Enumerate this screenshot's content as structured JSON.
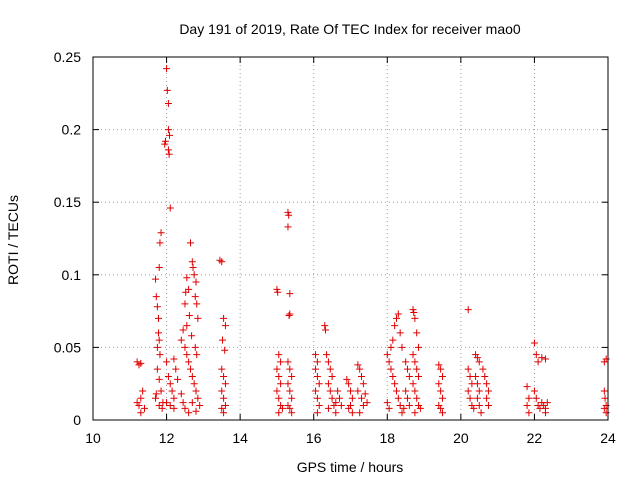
{
  "chart_data": {
    "type": "scatter",
    "title": "Day 191 of 2019, Rate Of TEC Index for receiver mao0",
    "xlabel": "GPS time / hours",
    "ylabel": "ROTI / TECUs",
    "xlim": [
      10,
      24
    ],
    "ylim": [
      0,
      0.25
    ],
    "grid": true,
    "marker": "+",
    "color": "#e00000",
    "x_ticks": [
      10,
      12,
      14,
      16,
      18,
      20,
      22,
      24
    ],
    "x_tick_labels": [
      "10",
      "12",
      "14",
      "16",
      "18",
      "20",
      "22",
      "24"
    ],
    "y_ticks": [
      0,
      0.05,
      0.1,
      0.15,
      0.2,
      0.25
    ],
    "y_tick_labels": [
      "0",
      "0.05",
      "0.1",
      "0.15",
      "0.2",
      "0.25"
    ],
    "series": [
      {
        "name": "ROTI",
        "points": [
          [
            11.2,
            0.04
          ],
          [
            11.25,
            0.038
          ],
          [
            11.3,
            0.039
          ],
          [
            11.2,
            0.012
          ],
          [
            11.25,
            0.01
          ],
          [
            11.3,
            0.015
          ],
          [
            11.35,
            0.02
          ],
          [
            11.4,
            0.008
          ],
          [
            11.3,
            0.005
          ],
          [
            11.7,
            0.097
          ],
          [
            11.72,
            0.085
          ],
          [
            11.75,
            0.078
          ],
          [
            11.78,
            0.06
          ],
          [
            11.8,
            0.055
          ],
          [
            11.82,
            0.045
          ],
          [
            11.75,
            0.035
          ],
          [
            11.8,
            0.028
          ],
          [
            11.85,
            0.02
          ],
          [
            11.7,
            0.015
          ],
          [
            11.9,
            0.012
          ],
          [
            11.8,
            0.01
          ],
          [
            11.88,
            0.008
          ],
          [
            11.72,
            0.018
          ],
          [
            11.8,
            0.105
          ],
          [
            11.82,
            0.122
          ],
          [
            11.85,
            0.129
          ],
          [
            11.78,
            0.07
          ],
          [
            11.75,
            0.05
          ],
          [
            11.95,
            0.19
          ],
          [
            11.97,
            0.192
          ],
          [
            12.0,
            0.242
          ],
          [
            12.02,
            0.227
          ],
          [
            12.05,
            0.218
          ],
          [
            12.05,
            0.2
          ],
          [
            12.08,
            0.196
          ],
          [
            12.05,
            0.186
          ],
          [
            12.07,
            0.183
          ],
          [
            12.1,
            0.146
          ],
          [
            12.0,
            0.04
          ],
          [
            12.05,
            0.03
          ],
          [
            12.1,
            0.025
          ],
          [
            12.15,
            0.02
          ],
          [
            12.2,
            0.015
          ],
          [
            12.1,
            0.01
          ],
          [
            12.0,
            0.012
          ],
          [
            12.2,
            0.008
          ],
          [
            12.25,
            0.035
          ],
          [
            12.3,
            0.028
          ],
          [
            12.2,
            0.042
          ],
          [
            12.4,
            0.055
          ],
          [
            12.45,
            0.062
          ],
          [
            12.5,
            0.08
          ],
          [
            12.52,
            0.088
          ],
          [
            12.55,
            0.098
          ],
          [
            12.6,
            0.09
          ],
          [
            12.65,
            0.122
          ],
          [
            12.7,
            0.109
          ],
          [
            12.72,
            0.105
          ],
          [
            12.75,
            0.1
          ],
          [
            12.8,
            0.095
          ],
          [
            12.78,
            0.085
          ],
          [
            12.82,
            0.08
          ],
          [
            12.85,
            0.07
          ],
          [
            12.5,
            0.05
          ],
          [
            12.55,
            0.045
          ],
          [
            12.6,
            0.04
          ],
          [
            12.65,
            0.035
          ],
          [
            12.7,
            0.03
          ],
          [
            12.75,
            0.025
          ],
          [
            12.8,
            0.02
          ],
          [
            12.85,
            0.015
          ],
          [
            12.9,
            0.01
          ],
          [
            12.4,
            0.018
          ],
          [
            12.45,
            0.012
          ],
          [
            12.5,
            0.008
          ],
          [
            12.6,
            0.005
          ],
          [
            12.7,
            0.012
          ],
          [
            12.8,
            0.006
          ],
          [
            12.55,
            0.065
          ],
          [
            12.62,
            0.072
          ],
          [
            12.68,
            0.058
          ],
          [
            12.78,
            0.05
          ],
          [
            12.82,
            0.045
          ],
          [
            13.45,
            0.11
          ],
          [
            13.5,
            0.109
          ],
          [
            13.55,
            0.07
          ],
          [
            13.6,
            0.065
          ],
          [
            13.52,
            0.055
          ],
          [
            13.58,
            0.048
          ],
          [
            13.5,
            0.035
          ],
          [
            13.55,
            0.03
          ],
          [
            13.6,
            0.025
          ],
          [
            13.5,
            0.02
          ],
          [
            13.55,
            0.015
          ],
          [
            13.6,
            0.01
          ],
          [
            13.5,
            0.008
          ],
          [
            13.55,
            0.005
          ],
          [
            15.0,
            0.09
          ],
          [
            15.02,
            0.088
          ],
          [
            15.05,
            0.045
          ],
          [
            15.1,
            0.04
          ],
          [
            15.0,
            0.035
          ],
          [
            15.05,
            0.03
          ],
          [
            15.1,
            0.025
          ],
          [
            15.0,
            0.02
          ],
          [
            15.05,
            0.015
          ],
          [
            15.1,
            0.01
          ],
          [
            15.15,
            0.008
          ],
          [
            15.05,
            0.005
          ],
          [
            15.3,
            0.143
          ],
          [
            15.32,
            0.141
          ],
          [
            15.3,
            0.133
          ],
          [
            15.35,
            0.087
          ],
          [
            15.35,
            0.073
          ],
          [
            15.33,
            0.072
          ],
          [
            15.3,
            0.04
          ],
          [
            15.35,
            0.035
          ],
          [
            15.4,
            0.03
          ],
          [
            15.3,
            0.025
          ],
          [
            15.35,
            0.02
          ],
          [
            15.4,
            0.015
          ],
          [
            15.3,
            0.01
          ],
          [
            15.35,
            0.008
          ],
          [
            15.4,
            0.005
          ],
          [
            16.05,
            0.045
          ],
          [
            16.1,
            0.04
          ],
          [
            16.05,
            0.035
          ],
          [
            16.1,
            0.03
          ],
          [
            16.15,
            0.025
          ],
          [
            16.05,
            0.02
          ],
          [
            16.1,
            0.015
          ],
          [
            16.15,
            0.01
          ],
          [
            16.1,
            0.005
          ],
          [
            16.3,
            0.065
          ],
          [
            16.32,
            0.062
          ],
          [
            16.35,
            0.045
          ],
          [
            16.4,
            0.04
          ],
          [
            16.45,
            0.035
          ],
          [
            16.5,
            0.03
          ],
          [
            16.4,
            0.025
          ],
          [
            16.45,
            0.02
          ],
          [
            16.5,
            0.015
          ],
          [
            16.55,
            0.01
          ],
          [
            16.4,
            0.008
          ],
          [
            16.6,
            0.012
          ],
          [
            16.65,
            0.02
          ],
          [
            16.7,
            0.015
          ],
          [
            16.75,
            0.01
          ],
          [
            16.6,
            0.005
          ],
          [
            16.9,
            0.028
          ],
          [
            16.95,
            0.025
          ],
          [
            17.0,
            0.02
          ],
          [
            17.05,
            0.015
          ],
          [
            17.0,
            0.01
          ],
          [
            16.95,
            0.008
          ],
          [
            17.05,
            0.005
          ],
          [
            17.2,
            0.038
          ],
          [
            17.25,
            0.035
          ],
          [
            17.3,
            0.03
          ],
          [
            17.35,
            0.025
          ],
          [
            17.2,
            0.02
          ],
          [
            17.3,
            0.015
          ],
          [
            17.35,
            0.01
          ],
          [
            17.25,
            0.005
          ],
          [
            17.4,
            0.018
          ],
          [
            17.45,
            0.012
          ],
          [
            18.0,
            0.045
          ],
          [
            18.05,
            0.04
          ],
          [
            18.1,
            0.05
          ],
          [
            18.15,
            0.055
          ],
          [
            18.2,
            0.065
          ],
          [
            18.25,
            0.07
          ],
          [
            18.3,
            0.073
          ],
          [
            18.35,
            0.06
          ],
          [
            18.4,
            0.05
          ],
          [
            18.1,
            0.035
          ],
          [
            18.15,
            0.03
          ],
          [
            18.2,
            0.025
          ],
          [
            18.25,
            0.02
          ],
          [
            18.3,
            0.015
          ],
          [
            18.35,
            0.01
          ],
          [
            18.0,
            0.012
          ],
          [
            18.05,
            0.008
          ],
          [
            18.4,
            0.005
          ],
          [
            18.5,
            0.04
          ],
          [
            18.55,
            0.035
          ],
          [
            18.6,
            0.03
          ],
          [
            18.5,
            0.02
          ],
          [
            18.55,
            0.015
          ],
          [
            18.6,
            0.01
          ],
          [
            18.45,
            0.008
          ],
          [
            18.7,
            0.076
          ],
          [
            18.72,
            0.074
          ],
          [
            18.75,
            0.07
          ],
          [
            18.8,
            0.06
          ],
          [
            18.85,
            0.05
          ],
          [
            18.7,
            0.045
          ],
          [
            18.75,
            0.04
          ],
          [
            18.8,
            0.035
          ],
          [
            18.85,
            0.03
          ],
          [
            18.7,
            0.025
          ],
          [
            18.75,
            0.02
          ],
          [
            18.8,
            0.015
          ],
          [
            18.85,
            0.01
          ],
          [
            18.9,
            0.008
          ],
          [
            18.75,
            0.005
          ],
          [
            19.4,
            0.038
          ],
          [
            19.45,
            0.035
          ],
          [
            19.5,
            0.03
          ],
          [
            19.4,
            0.025
          ],
          [
            19.45,
            0.02
          ],
          [
            19.5,
            0.015
          ],
          [
            19.4,
            0.01
          ],
          [
            19.45,
            0.008
          ],
          [
            19.5,
            0.005
          ],
          [
            20.2,
            0.076
          ],
          [
            20.2,
            0.035
          ],
          [
            20.25,
            0.03
          ],
          [
            20.3,
            0.025
          ],
          [
            20.2,
            0.02
          ],
          [
            20.25,
            0.015
          ],
          [
            20.3,
            0.01
          ],
          [
            20.35,
            0.008
          ],
          [
            20.4,
            0.045
          ],
          [
            20.45,
            0.043
          ],
          [
            20.5,
            0.04
          ],
          [
            20.4,
            0.03
          ],
          [
            20.45,
            0.025
          ],
          [
            20.5,
            0.02
          ],
          [
            20.45,
            0.015
          ],
          [
            20.5,
            0.01
          ],
          [
            20.55,
            0.005
          ],
          [
            20.6,
            0.035
          ],
          [
            20.65,
            0.03
          ],
          [
            20.7,
            0.025
          ],
          [
            20.75,
            0.02
          ],
          [
            20.7,
            0.015
          ],
          [
            20.75,
            0.01
          ],
          [
            21.8,
            0.023
          ],
          [
            21.85,
            0.015
          ],
          [
            21.8,
            0.01
          ],
          [
            21.85,
            0.005
          ],
          [
            22.0,
            0.053
          ],
          [
            22.05,
            0.045
          ],
          [
            22.1,
            0.04
          ],
          [
            22.2,
            0.043
          ],
          [
            22.3,
            0.042
          ],
          [
            22.0,
            0.02
          ],
          [
            22.05,
            0.015
          ],
          [
            22.1,
            0.01
          ],
          [
            22.15,
            0.008
          ],
          [
            22.2,
            0.012
          ],
          [
            22.25,
            0.01
          ],
          [
            22.3,
            0.008
          ],
          [
            22.35,
            0.012
          ],
          [
            22.3,
            0.005
          ],
          [
            23.9,
            0.04
          ],
          [
            23.95,
            0.042
          ],
          [
            23.9,
            0.02
          ],
          [
            23.92,
            0.015
          ],
          [
            23.95,
            0.01
          ],
          [
            23.9,
            0.008
          ],
          [
            23.95,
            0.005
          ]
        ]
      }
    ]
  }
}
